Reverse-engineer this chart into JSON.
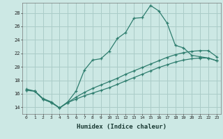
{
  "xlabel": "Humidex (Indice chaleur)",
  "ylabel": "",
  "bg_color": "#cce8e4",
  "line_color": "#2e7d6e",
  "grid_color": "#aaccc8",
  "xlim": [
    -0.5,
    23.5
  ],
  "ylim": [
    13.0,
    29.5
  ],
  "xticks": [
    0,
    1,
    2,
    3,
    4,
    5,
    6,
    7,
    8,
    9,
    10,
    11,
    12,
    13,
    14,
    15,
    16,
    17,
    18,
    19,
    20,
    21,
    22,
    23
  ],
  "yticks": [
    14,
    16,
    18,
    20,
    22,
    24,
    26,
    28
  ],
  "line1_x": [
    0,
    1,
    2,
    3,
    4,
    5,
    6,
    7,
    8,
    9,
    10,
    11,
    12,
    13,
    14,
    15,
    16,
    17,
    18,
    19,
    20,
    21,
    22,
    23
  ],
  "line1_y": [
    16.7,
    16.4,
    15.3,
    14.8,
    13.9,
    14.8,
    16.4,
    19.5,
    21.0,
    21.2,
    22.3,
    24.2,
    25.1,
    27.2,
    27.3,
    29.1,
    28.3,
    26.5,
    23.2,
    22.8,
    21.7,
    21.5,
    21.3,
    20.9
  ],
  "line2_x": [
    0,
    1,
    2,
    3,
    4,
    5,
    6,
    7,
    8,
    9,
    10,
    11,
    12,
    13,
    14,
    15,
    16,
    17,
    18,
    19,
    20,
    21,
    22,
    23
  ],
  "line2_y": [
    16.5,
    16.4,
    15.2,
    14.7,
    13.9,
    14.7,
    15.5,
    16.2,
    16.8,
    17.3,
    17.8,
    18.3,
    18.9,
    19.4,
    19.9,
    20.4,
    20.9,
    21.4,
    21.8,
    22.1,
    22.3,
    22.4,
    22.4,
    21.5
  ],
  "line3_x": [
    0,
    1,
    2,
    3,
    4,
    5,
    6,
    7,
    8,
    9,
    10,
    11,
    12,
    13,
    14,
    15,
    16,
    17,
    18,
    19,
    20,
    21,
    22,
    23
  ],
  "line3_y": [
    16.5,
    16.4,
    15.2,
    14.7,
    13.9,
    14.7,
    15.2,
    15.7,
    16.1,
    16.5,
    16.9,
    17.4,
    17.9,
    18.4,
    18.9,
    19.4,
    19.9,
    20.3,
    20.7,
    21.0,
    21.2,
    21.3,
    21.3,
    20.9
  ]
}
